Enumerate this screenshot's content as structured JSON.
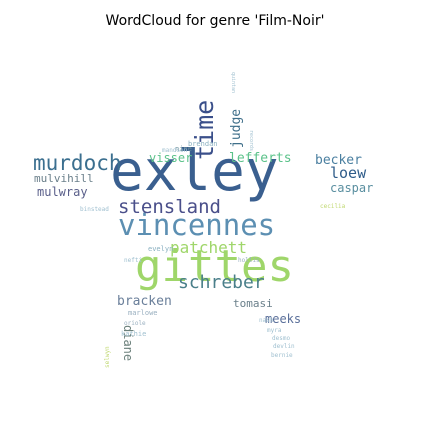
{
  "chart_data": {
    "type": "wordcloud",
    "title": "WordCloud for genre 'Film-Noir'",
    "words": [
      {
        "text": "exley",
        "weight": 100,
        "color": "#3a5f8f"
      },
      {
        "text": "gittes",
        "weight": 80,
        "color": "#9fd66a"
      },
      {
        "text": "vincennes",
        "weight": 62,
        "color": "#5c8fb2"
      },
      {
        "text": "murdoch",
        "weight": 50,
        "color": "#3b6f8f"
      },
      {
        "text": "time",
        "weight": 46,
        "color": "#3a4f8a"
      },
      {
        "text": "stensland",
        "weight": 44,
        "color": "#4a4f8a"
      },
      {
        "text": "patchett",
        "weight": 40,
        "color": "#9fd66a"
      },
      {
        "text": "schreber",
        "weight": 36,
        "color": "#4a7f8a"
      },
      {
        "text": "lefferts",
        "weight": 34,
        "color": "#5bc28a"
      },
      {
        "text": "becker",
        "weight": 32,
        "color": "#4a7fa0"
      },
      {
        "text": "loew",
        "weight": 32,
        "color": "#2f5c8a"
      },
      {
        "text": "judge",
        "weight": 30,
        "color": "#3f6f8a"
      },
      {
        "text": "visser",
        "weight": 28,
        "color": "#5bc28a"
      },
      {
        "text": "mulvihill",
        "weight": 26,
        "color": "#6a7f8a"
      },
      {
        "text": "mulwray",
        "weight": 26,
        "color": "#5a5f8a"
      },
      {
        "text": "caspar",
        "weight": 24,
        "color": "#5a8fa0"
      },
      {
        "text": "bracken",
        "weight": 24,
        "color": "#6a7f9a"
      },
      {
        "text": "tomasi",
        "weight": 22,
        "color": "#6a7f8a"
      },
      {
        "text": "meeks",
        "weight": 22,
        "color": "#5a6f9a"
      },
      {
        "text": "diane",
        "weight": 20,
        "color": "#6a7f7a"
      },
      {
        "text": "brendan",
        "weight": 16,
        "color": "#8ab0c0"
      },
      {
        "text": "evelyn",
        "weight": 16,
        "color": "#8ab0c0"
      },
      {
        "text": "hollis",
        "weight": 14,
        "color": "#9ab0c0"
      },
      {
        "text": "marlowe",
        "weight": 14,
        "color": "#9ab0c0"
      },
      {
        "text": "oriole",
        "weight": 14,
        "color": "#9ab0c0"
      },
      {
        "text": "nine",
        "weight": 14,
        "color": "#6a8f9a"
      },
      {
        "text": "nash",
        "weight": 12,
        "color": "#a0c0d0"
      },
      {
        "text": "myra",
        "weight": 12,
        "color": "#a0c0d0"
      },
      {
        "text": "desmo",
        "weight": 12,
        "color": "#a0c0d0"
      },
      {
        "text": "devlin",
        "weight": 12,
        "color": "#a0c0d0"
      },
      {
        "text": "bernie",
        "weight": 12,
        "color": "#a0c0d0"
      },
      {
        "text": "kathie",
        "weight": 12,
        "color": "#a0c0d0"
      },
      {
        "text": "binstead",
        "weight": 12,
        "color": "#a0c0d0"
      },
      {
        "text": "cecilia",
        "weight": 12,
        "color": "#c0d870"
      },
      {
        "text": "nefti",
        "weight": 10,
        "color": "#a0c0d0"
      },
      {
        "text": "selwyn",
        "weight": 10,
        "color": "#c0d870"
      },
      {
        "text": "mandson",
        "weight": 10,
        "color": "#a0c0d0"
      },
      {
        "text": "quintan",
        "weight": 10,
        "color": "#a0c0d0"
      },
      {
        "text": "records",
        "weight": 10,
        "color": "#a0c0d0"
      }
    ]
  }
}
